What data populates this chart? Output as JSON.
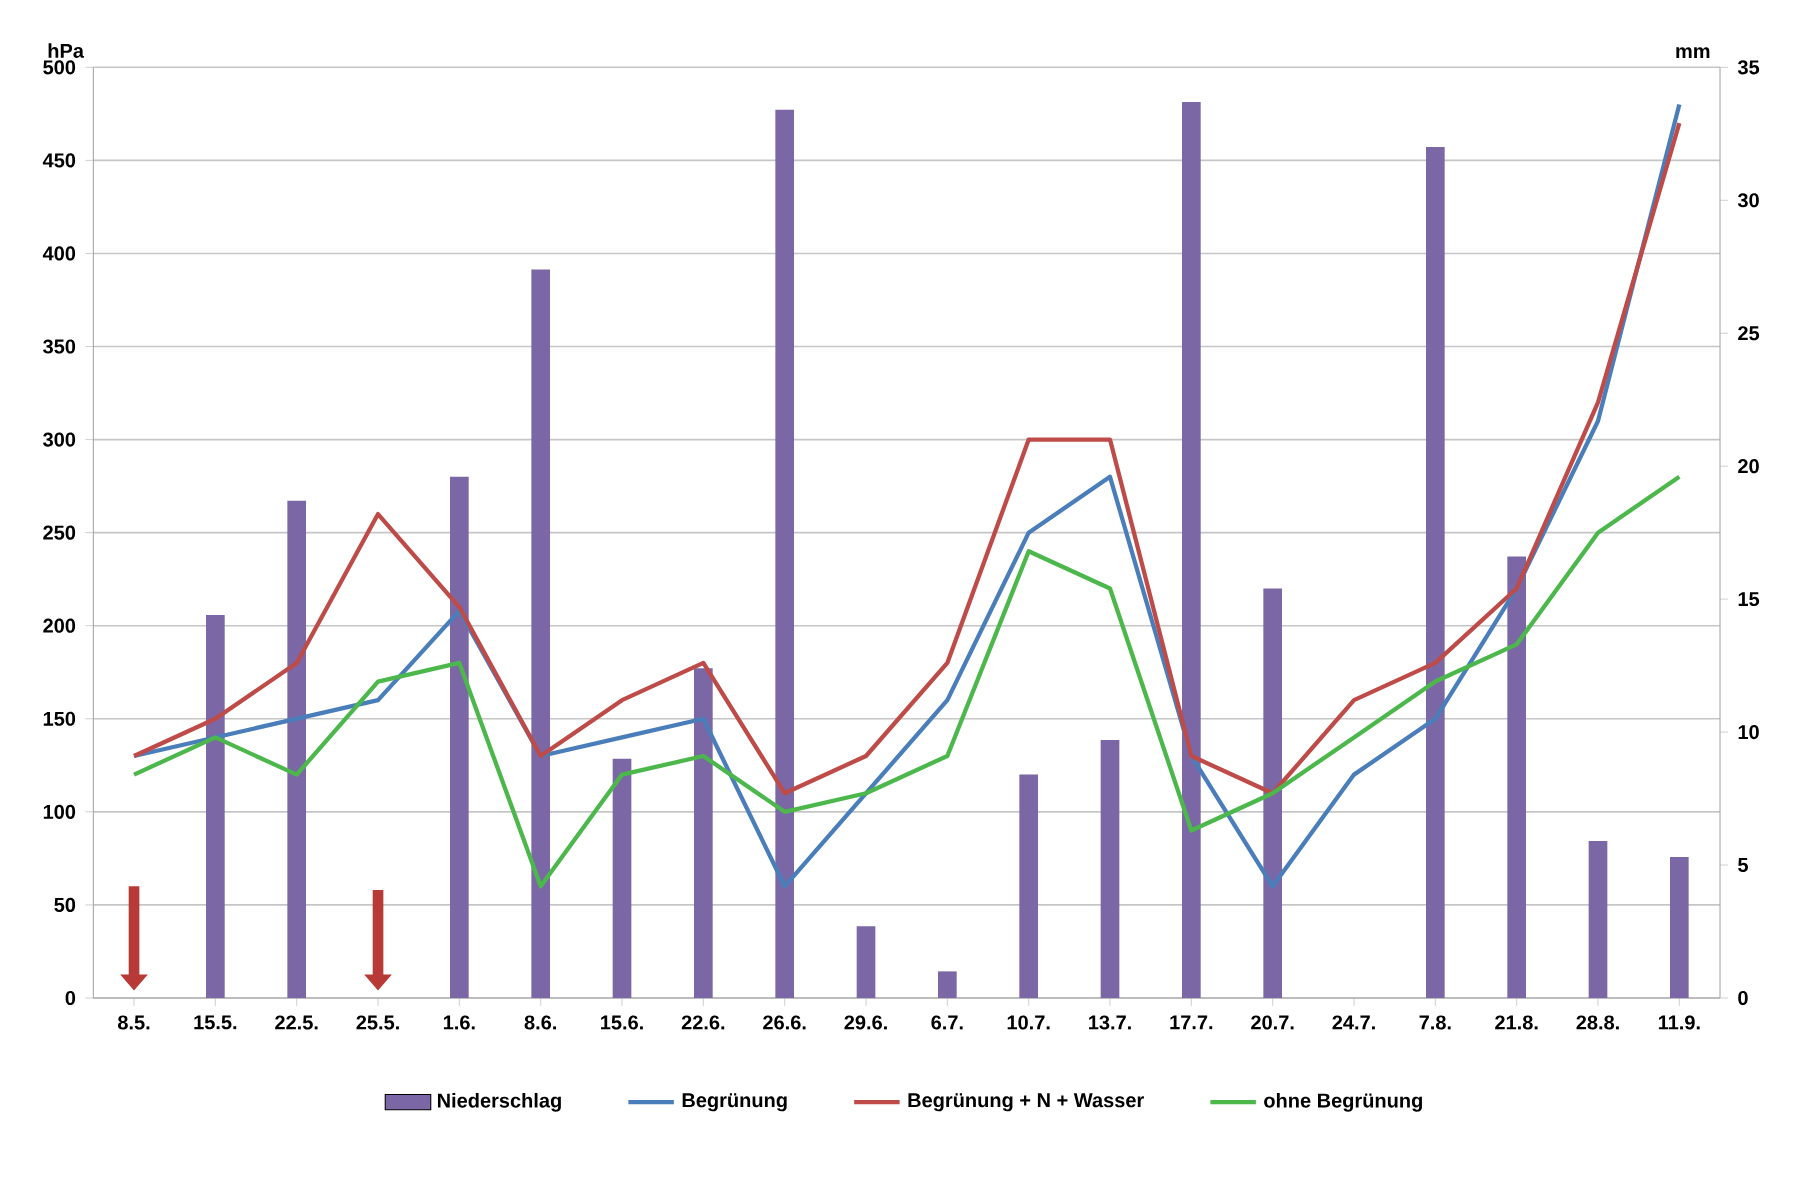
{
  "chart_data": {
    "type": "line",
    "ylabel": "hPa",
    "y2label": "mm",
    "categories": [
      "8.5.",
      "15.5.",
      "22.5.",
      "25.5.",
      "1.6.",
      "8.6.",
      "15.6.",
      "22.6.",
      "26.6.",
      "29.6.",
      "6.7.",
      "10.7.",
      "13.7.",
      "17.7.",
      "20.7.",
      "24.7.",
      "7.8.",
      "21.8.",
      "28.8.",
      "11.9."
    ],
    "series": [
      {
        "name": "Niederschlag",
        "type": "bar",
        "axis": "y2",
        "color": "#7b66a6",
        "values": [
          null,
          14.4,
          18.7,
          null,
          19.6,
          27.4,
          9.0,
          12.4,
          33.4,
          2.7,
          1.0,
          8.4,
          9.7,
          33.7,
          15.4,
          null,
          32.0,
          16.6,
          5.9,
          5.3
        ]
      },
      {
        "name": "Begrünung",
        "color": "#4a7ebb",
        "values": [
          130,
          140,
          150,
          160,
          208,
          130,
          140,
          150,
          60,
          110,
          160,
          250,
          280,
          130,
          60,
          120,
          150,
          220,
          310,
          480
        ]
      },
      {
        "name": "Begrünung + N + Wasser",
        "color": "#be4b48",
        "values": [
          130,
          150,
          180,
          260,
          210,
          130,
          160,
          180,
          110,
          130,
          180,
          300,
          300,
          130,
          110,
          160,
          180,
          220,
          320,
          470
        ]
      },
      {
        "name": "ohne Begrünung",
        "color": "#4cb84c",
        "values": [
          120,
          140,
          120,
          170,
          180,
          60,
          120,
          130,
          100,
          110,
          130,
          240,
          220,
          90,
          110,
          140,
          170,
          190,
          250,
          280
        ]
      }
    ],
    "ylim": [
      0,
      500
    ],
    "yticks": [
      0,
      50,
      100,
      150,
      200,
      250,
      300,
      350,
      400,
      450,
      500
    ],
    "y2lim": [
      0,
      35
    ],
    "y2ticks": [
      0,
      5,
      10,
      15,
      20,
      25,
      30,
      35
    ],
    "grid": "y",
    "legend": "bottom",
    "marker": "none",
    "line_style": "solid"
  }
}
